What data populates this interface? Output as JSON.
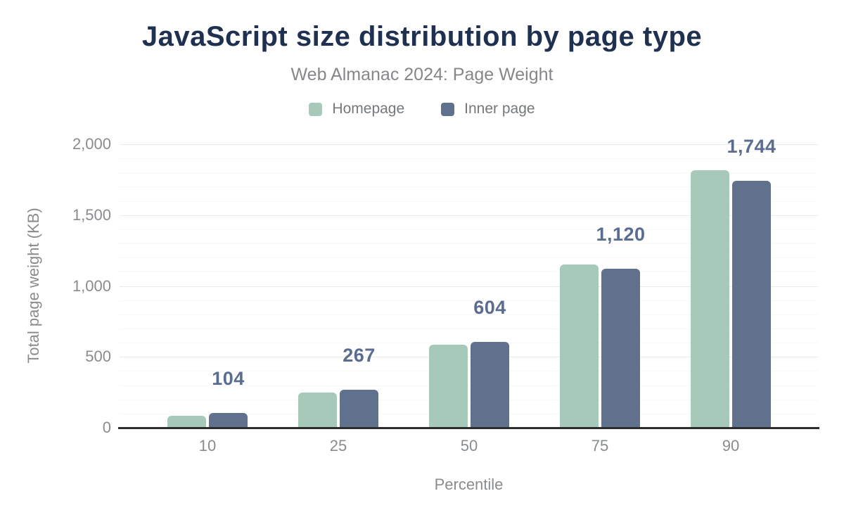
{
  "chart": {
    "title": "JavaScript size distribution by page type",
    "subtitle": "Web Almanac 2024: Page Weight",
    "xlabel": "Percentile",
    "ylabel": "Total page weight (KB)"
  },
  "colors": {
    "title": "#1f3050",
    "subtitle": "#85878a",
    "axis_text": "#898c8f",
    "legend_text": "#75787b",
    "value_label": "#5a6d91",
    "homepage_bar": "#a7c9ba",
    "inner_page_bar": "#60718d",
    "axis_line": "#2d2d2d",
    "major_grid": "#ebebeb",
    "minor_grid": "#f7f7f7"
  },
  "chart_data": {
    "type": "bar",
    "title": "JavaScript size distribution by page type",
    "subtitle": "Web Almanac 2024: Page Weight",
    "xlabel": "Percentile",
    "ylabel": "Total page weight (KB)",
    "categories": [
      "10",
      "25",
      "50",
      "75",
      "90"
    ],
    "series": [
      {
        "name": "Homepage",
        "color": "#a7c9ba",
        "values": [
          85,
          250,
          585,
          1150,
          1815
        ]
      },
      {
        "name": "Inner page",
        "color": "#60718d",
        "values": [
          104,
          267,
          604,
          1120,
          1744
        ],
        "data_labels": [
          "104",
          "267",
          "604",
          "1,120",
          "1,744"
        ]
      }
    ],
    "ylim": [
      0,
      2000
    ],
    "yticks": [
      0,
      500,
      1000,
      1500,
      2000
    ],
    "ytick_labels": [
      "0",
      "500",
      "1,000",
      "1,500",
      "2,000"
    ],
    "minor_grid_step": 100,
    "grid": "horizontal",
    "legend_position": "top",
    "data_labels_on_series": "Inner page"
  }
}
